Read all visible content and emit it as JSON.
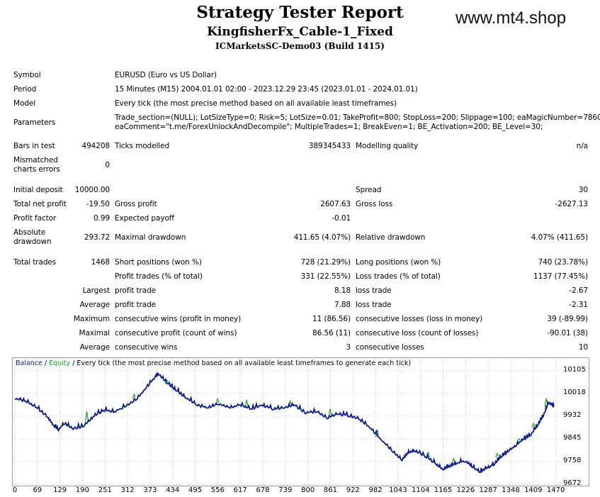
{
  "header": {
    "title": "Strategy Tester Report",
    "expert": "KingfisherFx_Cable-1_Fixed",
    "server": "ICMarketsSC-Demo03 (Build 1415)",
    "watermark": "www.mt4.shop"
  },
  "info": {
    "symbol_label": "Symbol",
    "symbol_value": "EURUSD (Euro vs US Dollar)",
    "period_label": "Period",
    "period_value": "15 Minutes (M15) 2004.01.01 02:00 - 2023.12.29 23:45 (2023.01.01 - 2024.01.01)",
    "model_label": "Model",
    "model_value": "Every tick (the most precise method based on all available least timeframes)",
    "parameters_label": "Parameters",
    "parameters_line1": "Trade_section=(NULL); LotSizeType=0; Risk=5; LotSize=0.01; TakeProfit=800; StopLoss=200; Slippage=100; eaMagicNumber=7860;",
    "parameters_line2": "eaComment=\"t.me/ForexUnlockAndDecompile\"; MultipleTrades=1; BreakEven=1; BE_Activation=200; BE_Level=30;"
  },
  "stats": {
    "bars_label": "Bars in test",
    "bars_value": "494208",
    "ticks_label": "Ticks modelled",
    "ticks_value": "389345433",
    "quality_label": "Modelling quality",
    "quality_value": "n/a",
    "mismatch_label1": "Mismatched",
    "mismatch_label2": "charts errors",
    "mismatch_value": "0",
    "deposit_label": "Initial deposit",
    "deposit_value": "10000.00",
    "spread_label": "Spread",
    "spread_value": "30",
    "net_label": "Total net profit",
    "net_value": "-19.50",
    "gross_profit_label": "Gross profit",
    "gross_profit_value": "2607.63",
    "gross_loss_label": "Gross loss",
    "gross_loss_value": "-2627.13",
    "pf_label": "Profit factor",
    "pf_value": "0.99",
    "payoff_label": "Expected payoff",
    "payoff_value": "-0.01",
    "abs_dd_label1": "Absolute",
    "abs_dd_label2": "drawdown",
    "abs_dd_value": "293.72",
    "max_dd_label": "Maximal drawdown",
    "max_dd_value": "411.65 (4.07%)",
    "rel_dd_label": "Relative drawdown",
    "rel_dd_value": "4.07% (411.65)",
    "trades_label": "Total trades",
    "trades_value": "1468",
    "short_label": "Short positions (won %)",
    "short_value": "728 (21.29%)",
    "long_label": "Long positions (won %)",
    "long_value": "740 (23.78%)",
    "profit_trades_label": "Profit trades (% of total)",
    "profit_trades_value": "331 (22.55%)",
    "loss_trades_label": "Loss trades (% of total)",
    "loss_trades_value": "1137 (77.45%)",
    "largest_label": "Largest",
    "largest_profit_label": "profit trade",
    "largest_profit_value": "8.18",
    "largest_loss_label": "loss trade",
    "largest_loss_value": "-2.67",
    "average_label": "Average",
    "average_profit_label": "profit trade",
    "average_profit_value": "7.88",
    "average_loss_label": "loss trade",
    "average_loss_value": "-2.31",
    "maximum_label": "Maximum",
    "max_wins_label": "consecutive wins (profit in money)",
    "max_wins_value": "11 (86.56)",
    "max_losses_label": "consecutive losses (loss in money)",
    "max_losses_value": "39 (-89.99)",
    "maximal_label": "Maximal",
    "maximal_profit_label": "consecutive profit (count of wins)",
    "maximal_profit_value": "86.56 (11)",
    "maximal_loss_label": "consecutive loss (count of losses)",
    "maximal_loss_value": "-90.01 (38)",
    "average2_label": "Average",
    "avg_wins_label": "consecutive wins",
    "avg_wins_value": "3",
    "avg_losses_label": "consecutive losses",
    "avg_losses_value": "10"
  },
  "chart_data": {
    "type": "line",
    "legend": {
      "balance": "Balance",
      "sep1": " / ",
      "equity": "Equity",
      "rest": " / Every tick (the most precise method based on all available least timeframes to generate each tick)"
    },
    "x_ticks": [
      "0",
      "69",
      "129",
      "190",
      "251",
      "312",
      "373",
      "434",
      "495",
      "556",
      "617",
      "678",
      "739",
      "800",
      "861",
      "922",
      "982",
      "1043",
      "1104",
      "1165",
      "1226",
      "1287",
      "1348",
      "1409",
      "1470"
    ],
    "y_ticks": [
      "10105",
      "10018",
      "9932",
      "9845",
      "9758",
      "9672"
    ],
    "ylim": [
      9672,
      10105
    ],
    "xlim": [
      0,
      1500
    ],
    "colors": {
      "balance": "#0a1c8c",
      "equity": "#1fa31f",
      "grid": "#c8c8c8"
    },
    "balance_points": [
      [
        0,
        10000
      ],
      [
        30,
        9990
      ],
      [
        60,
        9965
      ],
      [
        90,
        9930
      ],
      [
        105,
        9900
      ],
      [
        120,
        9880
      ],
      [
        135,
        9905
      ],
      [
        160,
        9885
      ],
      [
        190,
        9895
      ],
      [
        215,
        9930
      ],
      [
        245,
        9955
      ],
      [
        275,
        9950
      ],
      [
        305,
        9970
      ],
      [
        335,
        9995
      ],
      [
        360,
        10040
      ],
      [
        385,
        10080
      ],
      [
        395,
        10095
      ],
      [
        420,
        10060
      ],
      [
        445,
        10030
      ],
      [
        470,
        10005
      ],
      [
        500,
        9975
      ],
      [
        530,
        9965
      ],
      [
        560,
        9980
      ],
      [
        590,
        9965
      ],
      [
        620,
        9975
      ],
      [
        650,
        9960
      ],
      [
        680,
        9975
      ],
      [
        710,
        9960
      ],
      [
        740,
        9965
      ],
      [
        770,
        9975
      ],
      [
        800,
        9945
      ],
      [
        830,
        9950
      ],
      [
        860,
        9925
      ],
      [
        890,
        9940
      ],
      [
        920,
        9935
      ],
      [
        950,
        9920
      ],
      [
        980,
        9885
      ],
      [
        1010,
        9840
      ],
      [
        1040,
        9800
      ],
      [
        1065,
        9765
      ],
      [
        1080,
        9790
      ],
      [
        1100,
        9800
      ],
      [
        1130,
        9780
      ],
      [
        1160,
        9750
      ],
      [
        1180,
        9728
      ],
      [
        1200,
        9745
      ],
      [
        1215,
        9752
      ],
      [
        1240,
        9760
      ],
      [
        1260,
        9740
      ],
      [
        1280,
        9720
      ],
      [
        1300,
        9735
      ],
      [
        1320,
        9750
      ],
      [
        1340,
        9780
      ],
      [
        1360,
        9800
      ],
      [
        1380,
        9820
      ],
      [
        1400,
        9845
      ],
      [
        1420,
        9860
      ],
      [
        1440,
        9900
      ],
      [
        1455,
        9935
      ],
      [
        1470,
        9985
      ],
      [
        1485,
        9972
      ]
    ],
    "equity_spikes": [
      [
        200,
        9950
      ],
      [
        330,
        10015
      ],
      [
        420,
        10070
      ],
      [
        560,
        10000
      ],
      [
        640,
        9995
      ],
      [
        760,
        9990
      ],
      [
        870,
        9960
      ],
      [
        1000,
        9880
      ],
      [
        1140,
        9795
      ],
      [
        1210,
        9770
      ],
      [
        1330,
        9790
      ],
      [
        1390,
        9845
      ],
      [
        1430,
        9905
      ],
      [
        1465,
        10000
      ]
    ]
  }
}
